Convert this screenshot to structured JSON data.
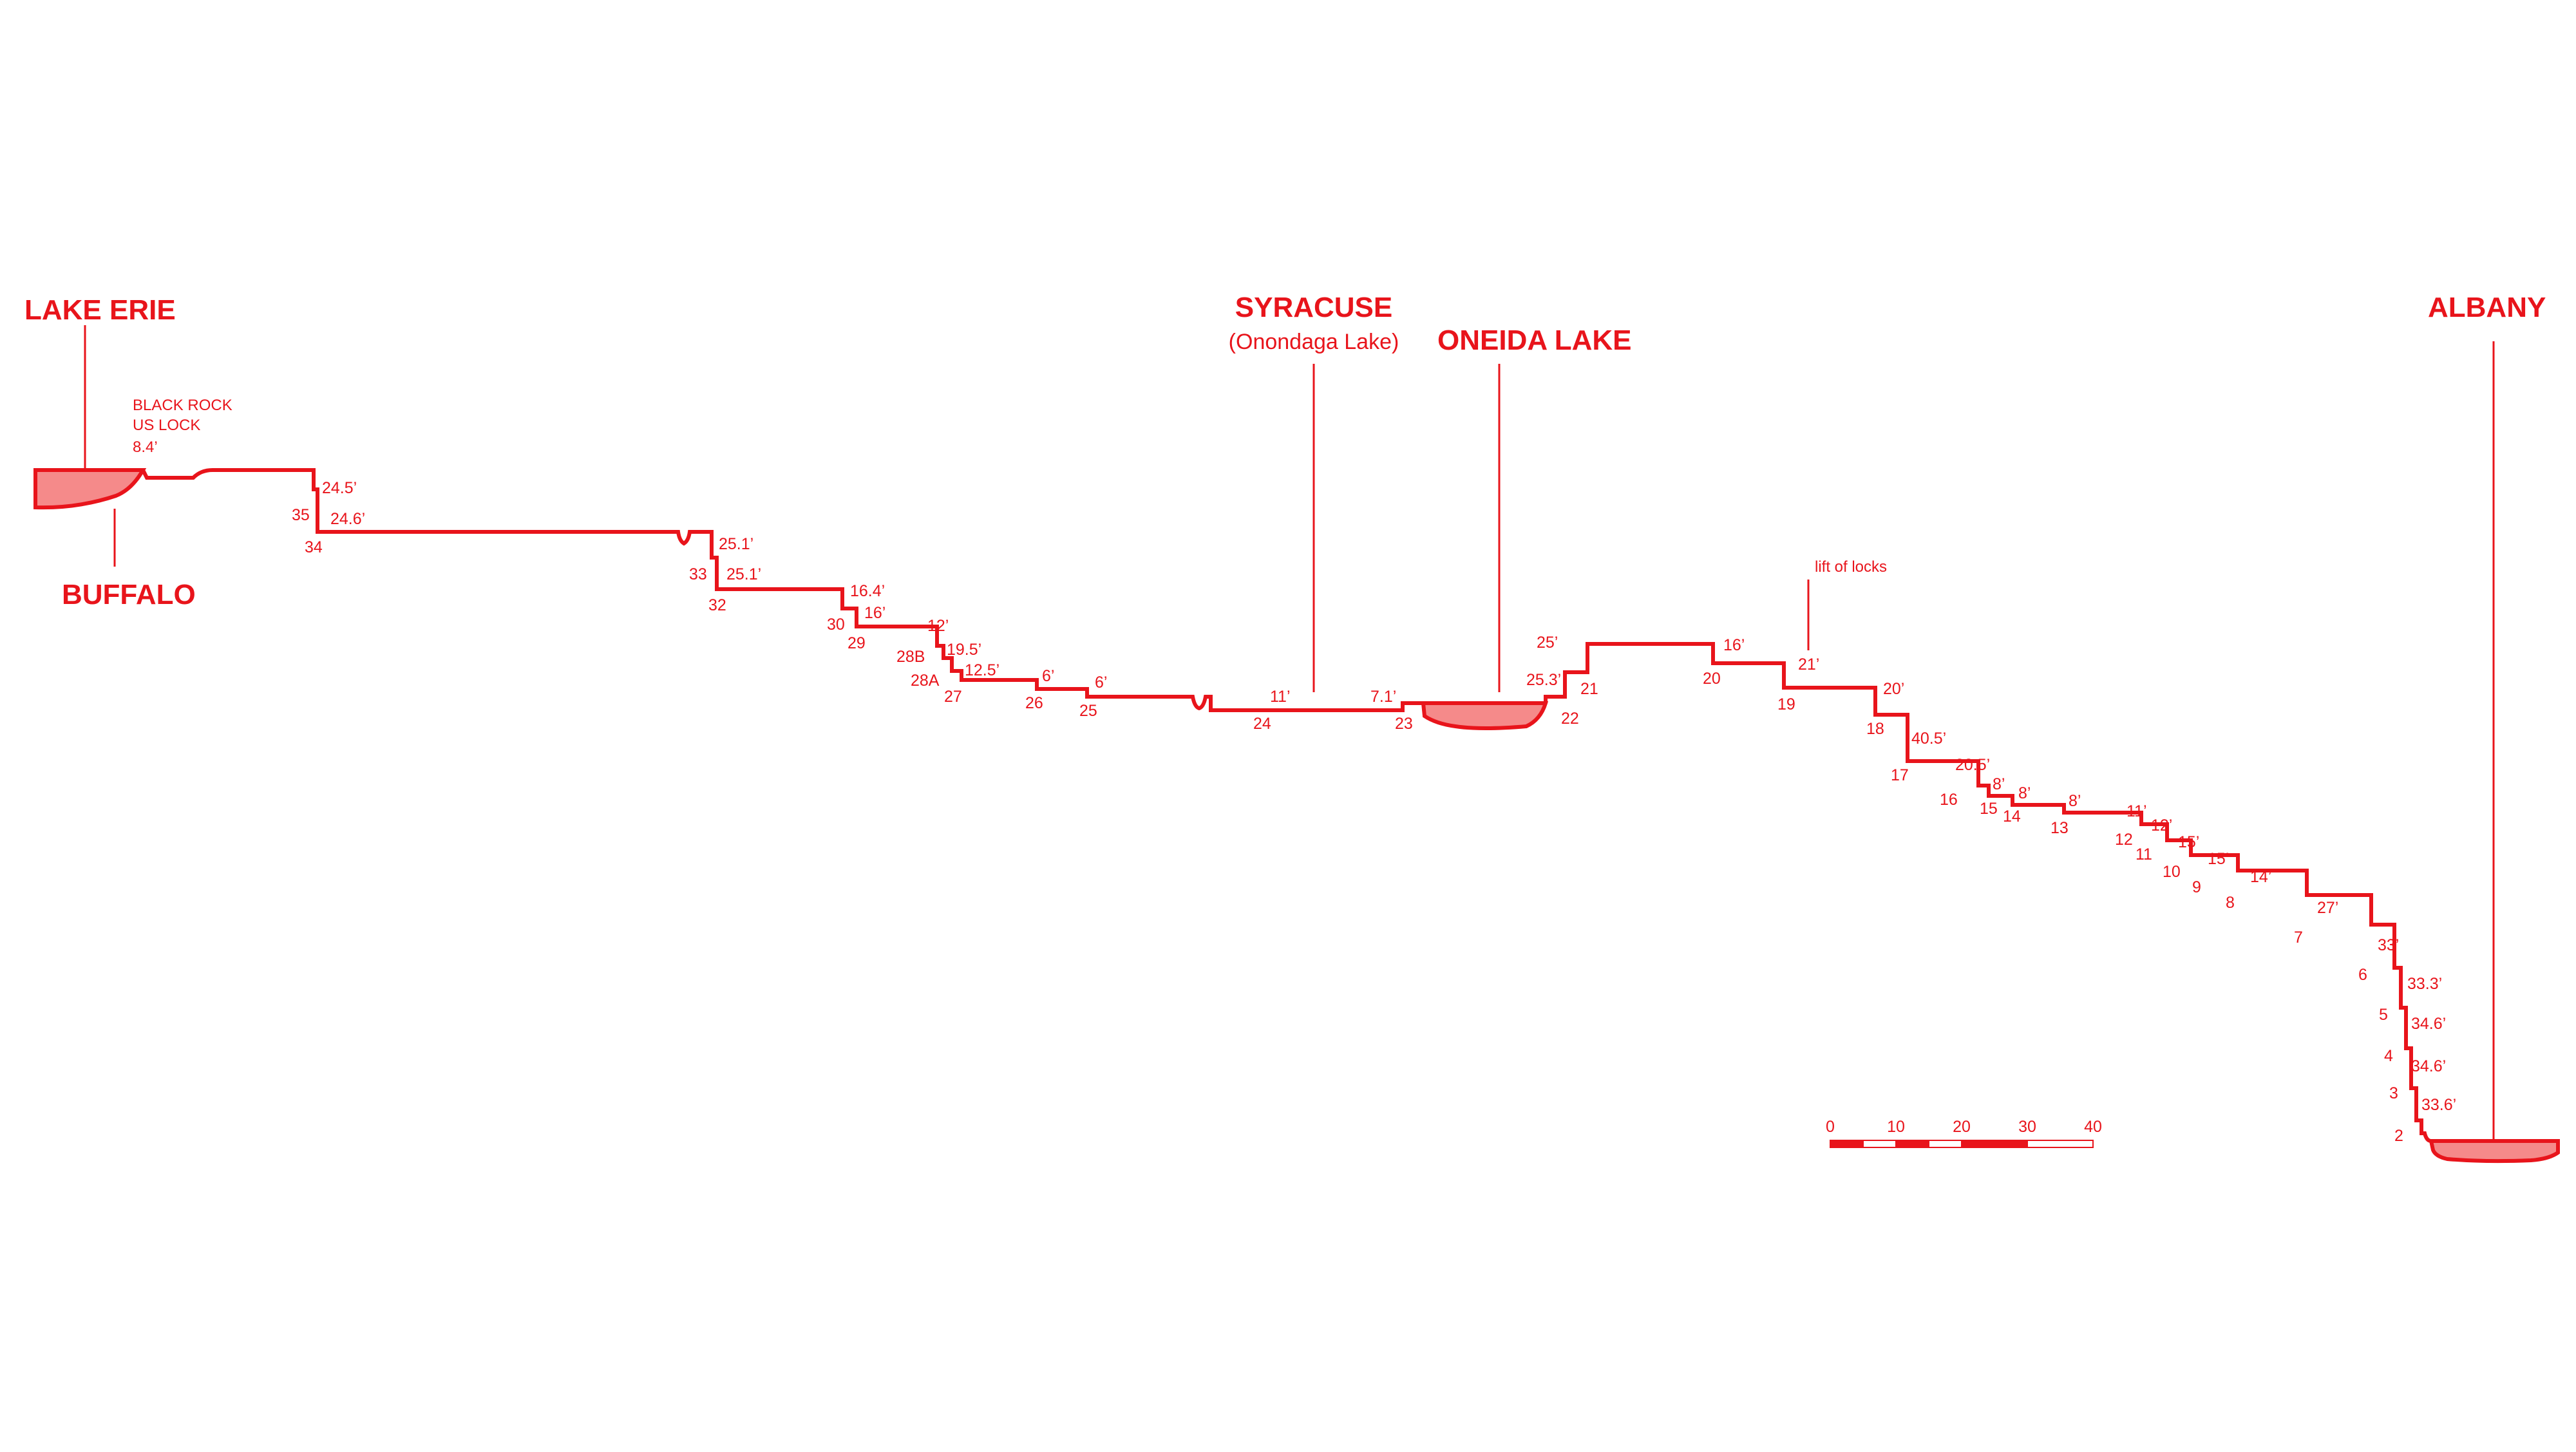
{
  "colors": {
    "line": "#e8141b",
    "fill": "#f58a8a",
    "background": "#ffffff"
  },
  "places": {
    "lake_erie": "LAKE ERIE",
    "buffalo": "BUFFALO",
    "black_rock_line1": "BLACK ROCK",
    "black_rock_line2": "US LOCK",
    "black_rock_lift": "8.4’",
    "syracuse": "SYRACUSE",
    "syracuse_sub": "(Onondaga Lake)",
    "oneida_lake": "ONEIDA LAKE",
    "albany": "ALBANY",
    "lift_of_locks": "lift of locks"
  },
  "locks": [
    {
      "number": "35",
      "lift": "24.5’"
    },
    {
      "number": "34",
      "lift": "24.6’"
    },
    {
      "number": "33",
      "lift": "25.1’"
    },
    {
      "number": "32",
      "lift": "25.1’"
    },
    {
      "number": "30",
      "lift": "16.4’"
    },
    {
      "number": "29",
      "lift": "16’"
    },
    {
      "number": "28B",
      "lift": "12’"
    },
    {
      "number": "28A",
      "lift": "19.5’"
    },
    {
      "number": "27",
      "lift": "12.5’"
    },
    {
      "number": "26",
      "lift": "6’"
    },
    {
      "number": "25",
      "lift": "6’"
    },
    {
      "number": "24",
      "lift": "11’"
    },
    {
      "number": "23",
      "lift": "7.1’"
    },
    {
      "number": "22",
      "lift": "25.3’"
    },
    {
      "number": "21",
      "lift": "25’"
    },
    {
      "number": "20",
      "lift": "16’"
    },
    {
      "number": "19",
      "lift": "21’"
    },
    {
      "number": "18",
      "lift": "20’"
    },
    {
      "number": "17",
      "lift": "40.5’"
    },
    {
      "number": "16",
      "lift": "20.5’"
    },
    {
      "number": "15",
      "lift": "8’"
    },
    {
      "number": "14",
      "lift": "8’"
    },
    {
      "number": "13",
      "lift": "8’"
    },
    {
      "number": "12",
      "lift": "11’"
    },
    {
      "number": "11",
      "lift": "12’"
    },
    {
      "number": "10",
      "lift": "15’"
    },
    {
      "number": "9",
      "lift": "15’"
    },
    {
      "number": "8",
      "lift": "14’"
    },
    {
      "number": "7",
      "lift": "27’"
    },
    {
      "number": "6",
      "lift": "33’"
    },
    {
      "number": "5",
      "lift": "33.3’"
    },
    {
      "number": "4",
      "lift": "34.6’"
    },
    {
      "number": "3",
      "lift": "34.6’"
    },
    {
      "number": "2",
      "lift": "33.6’"
    }
  ],
  "scale": {
    "ticks": [
      "0",
      "10",
      "20",
      "30",
      "40"
    ]
  }
}
